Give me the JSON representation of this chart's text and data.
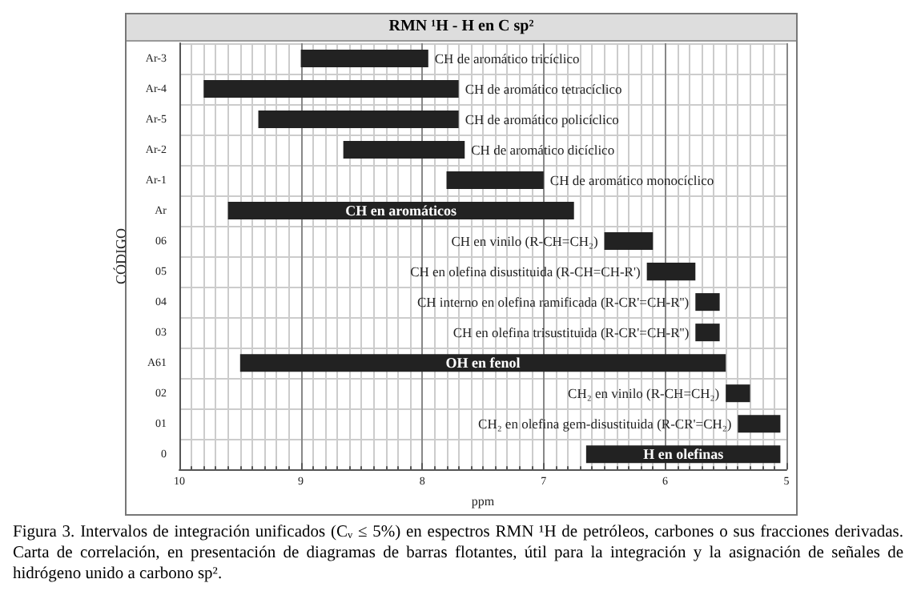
{
  "chart_data": {
    "type": "bar",
    "orientation": "horizontal",
    "title": "RMN ¹H  -  H en C sp²",
    "xlabel": "ppm",
    "ylabel": "CÓDIGO",
    "categories": [
      "Ar-3",
      "Ar-4",
      "Ar-5",
      "Ar-2",
      "Ar-1",
      "Ar",
      "06",
      "05",
      "04",
      "03",
      "A61",
      "02",
      "01",
      "0"
    ],
    "base": [
      7.95,
      7.7,
      7.7,
      7.65,
      7.0,
      6.75,
      6.1,
      5.75,
      5.55,
      5.55,
      5.5,
      5.3,
      5.05,
      5.05
    ],
    "values": [
      1.05,
      2.1,
      1.65,
      1.0,
      0.8,
      2.85,
      0.4,
      0.4,
      0.2,
      0.2,
      4.0,
      0.2,
      0.35,
      1.6
    ],
    "color": "#222222",
    "xlim": [
      10,
      5
    ],
    "xticks": [
      10,
      9,
      8,
      7,
      6,
      5
    ],
    "grid": true,
    "annotations": [
      {
        "text": "CH de aromático tricíclico",
        "x": 7.95,
        "y": "Ar-3"
      },
      {
        "text": "CH de aromático tetracíclico",
        "x": 7.7,
        "y": "Ar-4"
      },
      {
        "text": "CH de aromático policíclico",
        "x": 7.7,
        "y": "Ar-5"
      },
      {
        "text": "CH de aromático dicíclico",
        "x": 7.65,
        "y": "Ar-2"
      },
      {
        "text": "CH de aromático monocíclico",
        "x": 7.0,
        "y": "Ar-1"
      },
      {
        "text": "CH en aromáticos",
        "x": 8.175,
        "y": "Ar"
      },
      {
        "text": "CH en vinilo (R-CH=CH₂)",
        "x": 6.5,
        "y": "06"
      },
      {
        "text": "CH en olefina disustituida (R-CH=CH-R')",
        "x": 6.15,
        "y": "05"
      },
      {
        "text": "CH interno en olefina ramificada (R-CR'=CH-R'')",
        "x": 5.75,
        "y": "04"
      },
      {
        "text": "CH en olefina trisustituida (R-CR'=CH-R'')",
        "x": 5.75,
        "y": "03"
      },
      {
        "text": "OH en fenol",
        "x": 7.5,
        "y": "A61"
      },
      {
        "text": "CH₂ en vinilo (R-CH=CH₂)",
        "x": 5.5,
        "y": "02"
      },
      {
        "text": "CH₂ en olefina gem-disustituida (R-CR'=CH₂)",
        "x": 5.4,
        "y": "01"
      },
      {
        "text": "H en olefinas",
        "x": 5.85,
        "y": "0"
      },
      "Figura 3. Intervalos de integración unificados (Cᵥ ≤ 5%) en espectros RMN ¹H de petróleos, carbones o sus fracciones derivadas. Carta de correlación, en presentación de diagramas de barras flotantes, útil para la integración y la asignación de señales de hidrógeno unido a carbono sp²."
    ]
  }
}
